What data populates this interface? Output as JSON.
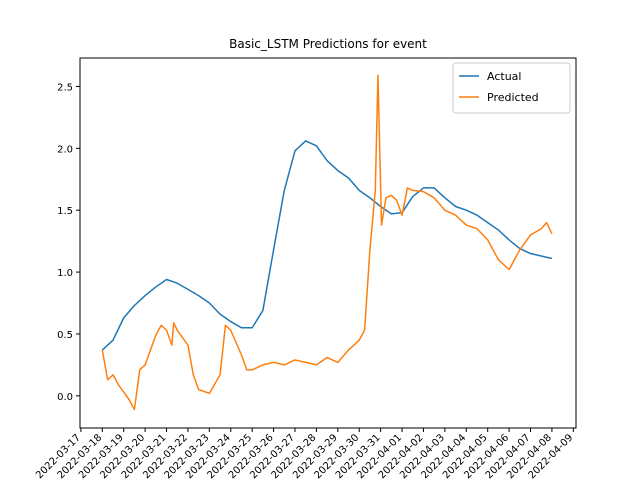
{
  "chart_data": {
    "type": "line",
    "title": "Basic_LSTM Predictions for event",
    "xlim": [
      "2022-03-16T23:00",
      "2022-04-09T03:00"
    ],
    "xticks": [
      "2022-03-17",
      "2022-03-18",
      "2022-03-19",
      "2022-03-20",
      "2022-03-21",
      "2022-03-22",
      "2022-03-23",
      "2022-03-24",
      "2022-03-25",
      "2022-03-26",
      "2022-03-27",
      "2022-03-28",
      "2022-03-29",
      "2022-03-30",
      "2022-03-31",
      "2022-04-01",
      "2022-04-02",
      "2022-04-03",
      "2022-04-04",
      "2022-04-05",
      "2022-04-06",
      "2022-04-07",
      "2022-04-08",
      "2022-04-09"
    ],
    "ylim": [
      -0.26,
      2.73
    ],
    "yticks": [
      {
        "value": 0,
        "label": "0.0"
      },
      0.5,
      {
        "value": 1,
        "label": "1.0"
      },
      1.5,
      {
        "value": 2,
        "label": "2.0"
      },
      2.5
    ],
    "legend": "upper right",
    "series": [
      {
        "name": "Actual",
        "color": "#1f77b4",
        "x": [
          "2022-03-18T00:00",
          "2022-03-18T12:00",
          "2022-03-19T00:00",
          "2022-03-19T12:00",
          "2022-03-20T00:00",
          "2022-03-20T12:00",
          "2022-03-21T00:00",
          "2022-03-21T12:00",
          "2022-03-22T00:00",
          "2022-03-22T12:00",
          "2022-03-23T00:00",
          "2022-03-23T12:00",
          "2022-03-24T00:00",
          "2022-03-24T12:00",
          "2022-03-25T00:00",
          "2022-03-25T12:00",
          "2022-03-26T00:00",
          "2022-03-26T12:00",
          "2022-03-27T00:00",
          "2022-03-27T12:00",
          "2022-03-28T00:00",
          "2022-03-28T12:00",
          "2022-03-29T00:00",
          "2022-03-29T12:00",
          "2022-03-30T00:00",
          "2022-03-30T12:00",
          "2022-03-31T00:00",
          "2022-03-31T12:00",
          "2022-04-01T00:00",
          "2022-04-01T12:00",
          "2022-04-02T00:00",
          "2022-04-02T12:00",
          "2022-04-03T00:00",
          "2022-04-03T12:00",
          "2022-04-04T00:00",
          "2022-04-04T12:00",
          "2022-04-05T00:00",
          "2022-04-05T12:00",
          "2022-04-06T00:00",
          "2022-04-06T12:00",
          "2022-04-07T00:00",
          "2022-04-07T12:00",
          "2022-04-08T00:00"
        ],
        "values": [
          0.37,
          0.45,
          0.63,
          0.73,
          0.81,
          0.88,
          0.94,
          0.91,
          0.86,
          0.81,
          0.75,
          0.66,
          0.6,
          0.55,
          0.55,
          0.69,
          1.18,
          1.66,
          1.98,
          2.06,
          2.02,
          1.9,
          1.82,
          1.76,
          1.66,
          1.6,
          1.53,
          1.47,
          1.48,
          1.61,
          1.68,
          1.68,
          1.6,
          1.53,
          1.5,
          1.46,
          1.4,
          1.34,
          1.26,
          1.19,
          1.15,
          1.13,
          1.11
        ]
      },
      {
        "name": "Predicted",
        "color": "#ff7f0e",
        "x": [
          "2022-03-18T00:00",
          "2022-03-18T06:00",
          "2022-03-18T12:00",
          "2022-03-18T18:00",
          "2022-03-19T00:00",
          "2022-03-19T06:00",
          "2022-03-19T12:00",
          "2022-03-19T18:00",
          "2022-03-20T00:00",
          "2022-03-20T12:00",
          "2022-03-20T18:00",
          "2022-03-21T00:00",
          "2022-03-21T06:00",
          "2022-03-21T08:00",
          "2022-03-21T12:00",
          "2022-03-22T00:00",
          "2022-03-22T06:00",
          "2022-03-22T12:00",
          "2022-03-23T00:00",
          "2022-03-23T12:00",
          "2022-03-23T18:00",
          "2022-03-24T00:00",
          "2022-03-24T12:00",
          "2022-03-24T18:00",
          "2022-03-25T00:00",
          "2022-03-25T12:00",
          "2022-03-26T00:00",
          "2022-03-26T12:00",
          "2022-03-27T00:00",
          "2022-03-27T12:00",
          "2022-03-28T00:00",
          "2022-03-28T12:00",
          "2022-03-29T00:00",
          "2022-03-29T12:00",
          "2022-03-30T00:00",
          "2022-03-30T06:00",
          "2022-03-30T12:00",
          "2022-03-30T18:00",
          "2022-03-30T21:00",
          "2022-03-31T01:00",
          "2022-03-31T06:00",
          "2022-03-31T12:00",
          "2022-03-31T18:00",
          "2022-04-01T00:00",
          "2022-04-01T06:00",
          "2022-04-01T12:00",
          "2022-04-02T00:00",
          "2022-04-02T12:00",
          "2022-04-03T00:00",
          "2022-04-03T12:00",
          "2022-04-04T00:00",
          "2022-04-04T12:00",
          "2022-04-05T00:00",
          "2022-04-05T12:00",
          "2022-04-06T00:00",
          "2022-04-06T12:00",
          "2022-04-07T00:00",
          "2022-04-07T12:00",
          "2022-04-07T18:00",
          "2022-04-08T00:00"
        ],
        "values": [
          0.37,
          0.13,
          0.17,
          0.09,
          0.03,
          -0.03,
          -0.11,
          0.21,
          0.25,
          0.49,
          0.57,
          0.53,
          0.41,
          0.59,
          0.53,
          0.41,
          0.17,
          0.05,
          0.02,
          0.17,
          0.57,
          0.53,
          0.33,
          0.21,
          0.21,
          0.25,
          0.27,
          0.25,
          0.29,
          0.27,
          0.25,
          0.31,
          0.27,
          0.37,
          0.45,
          0.53,
          1.18,
          1.66,
          2.59,
          1.38,
          1.6,
          1.62,
          1.58,
          1.46,
          1.68,
          1.66,
          1.65,
          1.6,
          1.5,
          1.46,
          1.38,
          1.35,
          1.26,
          1.1,
          1.02,
          1.18,
          1.3,
          1.35,
          1.4,
          1.31
        ]
      }
    ]
  }
}
